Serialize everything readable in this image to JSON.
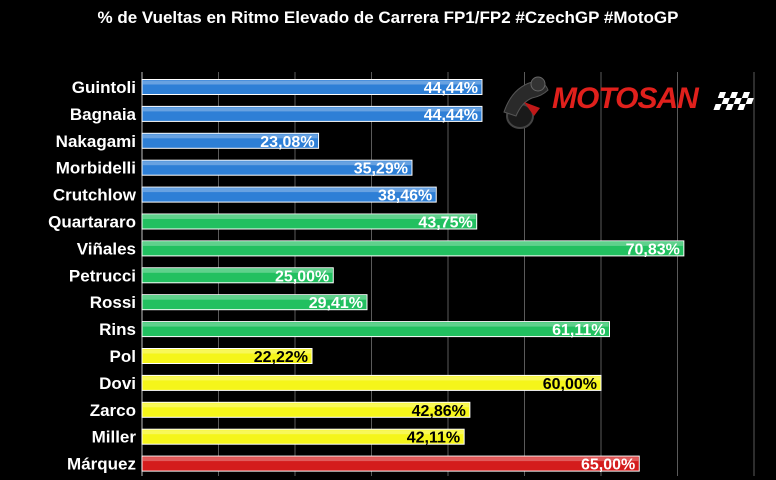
{
  "chart_data": {
    "type": "bar",
    "orientation": "horizontal",
    "title": "% de Vueltas en Ritmo Elevado de Carrera FP1/FP2 #CzechGP #MotoGP",
    "categories": [
      "Guintoli",
      "Bagnaia",
      "Nakagami",
      "Morbidelli",
      "Crutchlow",
      "Quartararo",
      "Viñales",
      "Petrucci",
      "Rossi",
      "Rins",
      "Pol",
      "Dovi",
      "Zarco",
      "Miller",
      "Márquez"
    ],
    "values": [
      44.44,
      44.44,
      23.08,
      35.29,
      38.46,
      43.75,
      70.83,
      25.0,
      29.41,
      61.11,
      22.22,
      60.0,
      42.86,
      42.11,
      65.0
    ],
    "value_labels": [
      "44,44%",
      "44,44%",
      "23,08%",
      "35,29%",
      "38,46%",
      "43,75%",
      "70,83%",
      "25,00%",
      "29,41%",
      "61,11%",
      "22,22%",
      "60,00%",
      "42,86%",
      "42,11%",
      "65,00%"
    ],
    "bar_colors": [
      "#2e7fd6",
      "#2e7fd6",
      "#2e7fd6",
      "#2e7fd6",
      "#2e7fd6",
      "#22c060",
      "#22c060",
      "#22c060",
      "#22c060",
      "#22c060",
      "#f5f51a",
      "#f5f51a",
      "#f5f51a",
      "#f5f51a",
      "#d41c1c"
    ],
    "label_colors": [
      "#ffffff",
      "#ffffff",
      "#ffffff",
      "#ffffff",
      "#ffffff",
      "#ffffff",
      "#ffffff",
      "#ffffff",
      "#ffffff",
      "#ffffff",
      "#000000",
      "#000000",
      "#000000",
      "#000000",
      "#ffffff"
    ],
    "xlim": [
      0,
      100
    ],
    "grid": true,
    "legend": "none"
  },
  "logo": {
    "text_moto": "MOTO",
    "text_san": "SAN",
    "icon": "motorcycle-rider-icon",
    "brand_color": "#e0201c"
  }
}
